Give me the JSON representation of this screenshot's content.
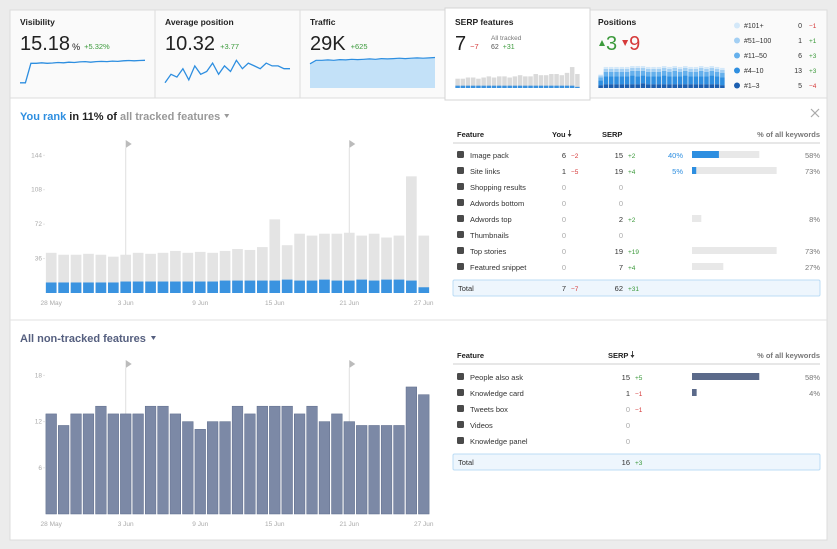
{
  "widgets": {
    "visibility": {
      "title": "Visibility",
      "value": "15.18",
      "unit": "%",
      "change": "+5.32%"
    },
    "avg_position": {
      "title": "Average position",
      "value": "10.32",
      "change": "+3.77"
    },
    "traffic": {
      "title": "Traffic",
      "value": "29K",
      "change": "+625"
    },
    "serp_features": {
      "title": "SERP features",
      "value": "7",
      "change": "−7",
      "note": "All tracked",
      "total": "62",
      "total_change": "+31"
    },
    "positions": {
      "title": "Positions",
      "up": "3",
      "down": "9"
    }
  },
  "chart_data": [
    {
      "type": "line",
      "color": "#2d8ee0",
      "values": [
        2,
        2,
        9,
        9,
        9.2,
        9,
        9.1,
        9.3,
        9.2,
        9.4,
        9.3,
        9.5,
        9.6,
        9.4,
        9.6,
        9.7,
        9.6,
        9.8,
        9.7,
        9.9,
        10,
        9.9,
        10,
        10.1
      ]
    },
    {
      "type": "line",
      "color": "#2d8ee0",
      "values": [
        3,
        6,
        5,
        8,
        4,
        9,
        6,
        7,
        10,
        6,
        9,
        7,
        11,
        8,
        10,
        9,
        8,
        10,
        9,
        9,
        8,
        8
      ]
    },
    {
      "type": "area",
      "color": "#2d8ee0",
      "fill": "#c3e1f8",
      "values": [
        7,
        8,
        8,
        8.1,
        8,
        8.2,
        8.1,
        8.3,
        8.2,
        8.3,
        8.4,
        8.3,
        8.5,
        8.4,
        8.5,
        8.6,
        8.5,
        8.6,
        8.7,
        8.6,
        8.7,
        8.8
      ]
    },
    {
      "type": "bar",
      "stacked": false,
      "series": [
        {
          "color": "#dadada",
          "values": [
            8,
            8,
            9,
            9,
            8,
            9,
            10,
            9,
            10,
            10,
            9,
            10,
            11,
            10,
            10,
            12,
            11,
            11,
            12,
            12,
            11,
            13,
            18,
            12
          ]
        },
        {
          "color": "#3a93e0",
          "values": [
            2,
            2,
            2,
            2,
            2,
            2,
            2,
            2,
            2,
            2,
            2,
            2,
            2,
            2,
            2,
            2,
            2,
            2,
            2,
            2,
            2,
            2,
            2,
            1
          ]
        }
      ]
    },
    {
      "type": "bar",
      "stacked": true,
      "series": [
        {
          "name": "#101+",
          "color": "#d3e8f9",
          "count": "0",
          "change": "−1",
          "values": [
            1,
            2,
            2,
            2,
            2,
            2,
            2,
            2,
            2,
            2,
            2,
            2,
            2,
            2,
            2,
            2,
            2,
            2,
            2,
            2,
            2,
            2,
            2,
            2
          ]
        },
        {
          "name": "#51–100",
          "color": "#a3cff3",
          "count": "1",
          "change": "+1",
          "values": [
            2,
            3,
            3,
            3,
            3,
            3,
            3,
            3,
            3,
            3,
            3,
            3,
            3,
            3,
            3,
            3,
            3,
            3,
            3,
            3,
            3,
            3,
            3,
            3
          ]
        },
        {
          "name": "#11–50",
          "color": "#65b0ec",
          "count": "6",
          "change": "+3",
          "values": [
            3,
            5,
            5,
            5,
            5,
            5,
            5,
            6,
            5,
            5,
            5,
            5,
            5,
            5,
            6,
            5,
            5,
            5,
            5,
            6,
            5,
            5,
            5,
            5
          ]
        },
        {
          "name": "#4–10",
          "color": "#2f8fe0",
          "count": "13",
          "change": "+3",
          "values": [
            5,
            8,
            8,
            8,
            8,
            8,
            9,
            8,
            8,
            8,
            8,
            8,
            9,
            8,
            8,
            8,
            9,
            8,
            8,
            8,
            8,
            9,
            8,
            8
          ]
        },
        {
          "name": "#1–3",
          "color": "#1c5fb0",
          "count": "5",
          "change": "−4",
          "values": [
            3,
            4,
            4,
            4,
            4,
            4,
            4,
            4,
            5,
            4,
            4,
            4,
            4,
            4,
            4,
            4,
            4,
            4,
            4,
            4,
            4,
            4,
            4,
            3
          ]
        }
      ]
    },
    {
      "type": "bar",
      "stacked": false,
      "categories": [
        "28 May",
        null,
        null,
        null,
        null,
        null,
        "3 Jun",
        null,
        null,
        null,
        null,
        null,
        "9 Jun",
        null,
        null,
        null,
        null,
        null,
        "15 Jun",
        null,
        null,
        null,
        null,
        null,
        "21 Jun",
        null,
        null,
        null,
        null,
        null,
        "27 Jun"
      ],
      "ylim": [
        0,
        160
      ],
      "yticks": [
        36,
        72,
        108,
        144
      ],
      "series": [
        {
          "color": "#e4e4e4",
          "values": [
            42,
            40,
            40,
            41,
            40,
            38,
            40,
            42,
            41,
            42,
            44,
            42,
            43,
            42,
            44,
            46,
            45,
            48,
            77,
            50,
            62,
            60,
            62,
            62,
            63,
            60,
            62,
            58,
            60,
            122,
            60
          ]
        },
        {
          "color": "#3a93e0",
          "values": [
            11,
            11,
            11,
            11,
            11,
            11,
            12,
            12,
            12,
            12,
            12,
            12,
            12,
            12,
            13,
            13,
            13,
            13,
            13,
            14,
            13,
            13,
            14,
            13,
            13,
            14,
            13,
            14,
            14,
            13,
            6
          ]
        }
      ]
    },
    {
      "type": "bar",
      "stacked": false,
      "categories": [
        "28 May",
        null,
        null,
        null,
        null,
        null,
        "3 Jun",
        null,
        null,
        null,
        null,
        null,
        "9 Jun",
        null,
        null,
        null,
        null,
        null,
        "15 Jun",
        null,
        null,
        null,
        null,
        null,
        "21 Jun",
        null,
        null,
        null,
        null,
        null,
        "27 Jun"
      ],
      "ylim": [
        0,
        20
      ],
      "yticks": [
        6,
        12,
        18
      ],
      "series": [
        {
          "color": "#7c89a6",
          "values": [
            13,
            11.5,
            13,
            13,
            14,
            13,
            13,
            13,
            14,
            14,
            13,
            12,
            11,
            12,
            12,
            14,
            13,
            14,
            14,
            14,
            13,
            14,
            12,
            13,
            12,
            11.5,
            11.5,
            11.5,
            11.5,
            16.5,
            15.5
          ]
        }
      ]
    }
  ],
  "tracked": {
    "heading": {
      "lead": "You rank",
      "middle": "in 11% of",
      "link": "all tracked features"
    },
    "columns": [
      "Feature",
      "You",
      "SERP",
      "% of all keywords"
    ],
    "rows": [
      {
        "feature": "Image pack",
        "you": "6",
        "you_change": "−2",
        "serp": "15",
        "serp_change": "+2",
        "share": {
          "value": 40,
          "label": "40%"
        },
        "keywords": {
          "value": 58,
          "label": "58%"
        }
      },
      {
        "feature": "Site links",
        "you": "1",
        "you_change": "−5",
        "serp": "19",
        "serp_change": "+4",
        "share": {
          "value": 5,
          "label": "5%"
        },
        "keywords": {
          "value": 73,
          "label": "73%"
        }
      },
      {
        "feature": "Shopping results",
        "you": "0",
        "serp": "0"
      },
      {
        "feature": "Adwords bottom",
        "you": "0",
        "serp": "0"
      },
      {
        "feature": "Adwords top",
        "you": "0",
        "serp": "2",
        "serp_change": "+2",
        "keywords": {
          "value": 8,
          "label": "8%"
        }
      },
      {
        "feature": "Thumbnails",
        "you": "0",
        "serp": "0"
      },
      {
        "feature": "Top stories",
        "you": "0",
        "serp": "19",
        "serp_change": "+19",
        "keywords": {
          "value": 73,
          "label": "73%"
        }
      },
      {
        "feature": "Featured snippet",
        "you": "0",
        "serp": "7",
        "serp_change": "+4",
        "keywords": {
          "value": 27,
          "label": "27%"
        }
      }
    ],
    "total": {
      "label": "Total",
      "you": "7",
      "you_change": "−7",
      "serp": "62",
      "serp_change": "+31"
    }
  },
  "untracked": {
    "heading": "All non-tracked features",
    "columns": [
      "Feature",
      "SERP",
      "% of all keywords"
    ],
    "rows": [
      {
        "feature": "People also ask",
        "serp": "15",
        "serp_change": "+5",
        "keywords": {
          "value": 58,
          "label": "58%"
        }
      },
      {
        "feature": "Knowledge card",
        "serp": "1",
        "serp_change": "−1",
        "keywords": {
          "value": 4,
          "label": "4%"
        }
      },
      {
        "feature": "Tweets box",
        "serp": "0",
        "serp_change": "−1"
      },
      {
        "feature": "Videos",
        "serp": "0"
      },
      {
        "feature": "Knowledge panel",
        "serp": "0"
      }
    ],
    "total": {
      "label": "Total",
      "serp": "16",
      "serp_change": "+3"
    }
  }
}
